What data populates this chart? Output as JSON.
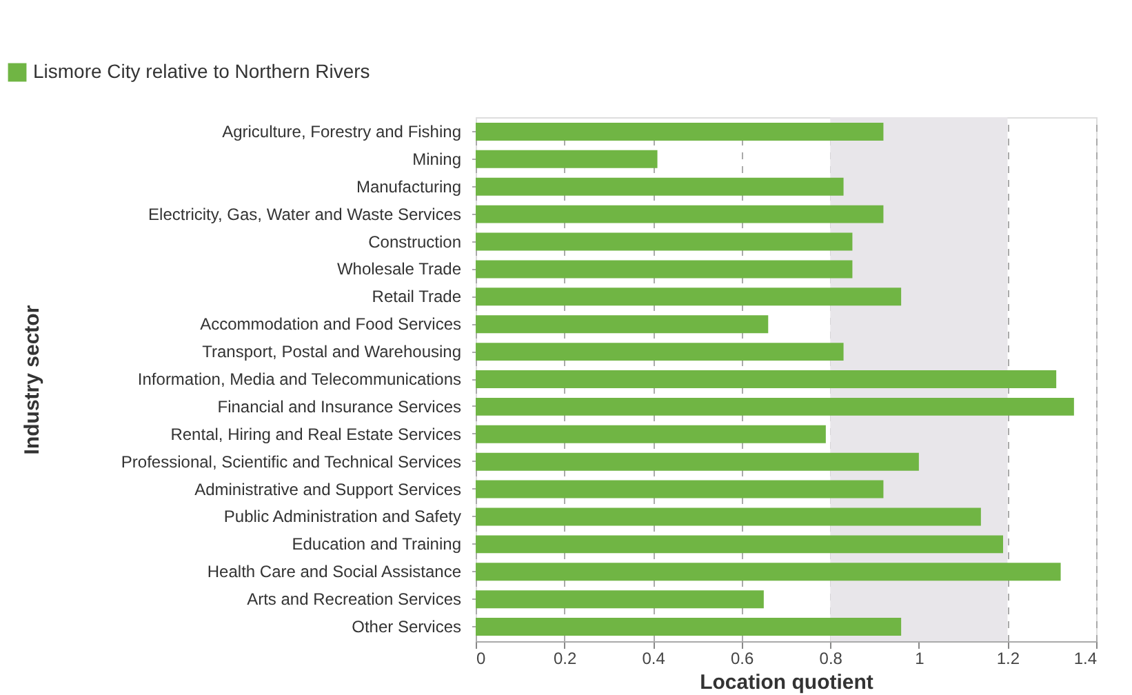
{
  "chart_data": {
    "type": "bar",
    "orientation": "horizontal",
    "xlabel": "Location quotient",
    "ylabel": "Industry sector",
    "legend": "top left",
    "categories": [
      "Agriculture, Forestry and Fishing",
      "Mining",
      "Manufacturing",
      "Electricity, Gas, Water and Waste Services",
      "Construction",
      "Wholesale Trade",
      "Retail Trade",
      "Accommodation and Food Services",
      "Transport, Postal and Warehousing",
      "Information,  Media and Telecommunications",
      "Financial and Insurance Services",
      "Rental, Hiring and Real Estate Services",
      "Professional, Scientific and Technical Services",
      "Administrative and Support Services",
      "Public Administration and Safety",
      "Education and Training",
      "Health Care and Social Assistance",
      "Arts and Recreation Services",
      "Other Services"
    ],
    "series": [
      {
        "name": "Lismore City relative to Northern Rivers",
        "color": "#70b544",
        "values": [
          0.92,
          0.41,
          0.83,
          0.92,
          0.85,
          0.85,
          0.96,
          0.66,
          0.83,
          1.31,
          1.35,
          0.79,
          1.0,
          0.92,
          1.14,
          1.19,
          1.32,
          0.65,
          0.96
        ]
      }
    ],
    "xlim": [
      0,
      1.4
    ],
    "xticks": [
      0,
      0.2,
      0.4,
      0.6,
      0.8,
      1,
      1.2,
      1.4
    ],
    "grid": "x",
    "bands": [
      {
        "axis": "x",
        "from": 0.8,
        "to": 1.2,
        "color": "#e8e6ea"
      }
    ]
  }
}
